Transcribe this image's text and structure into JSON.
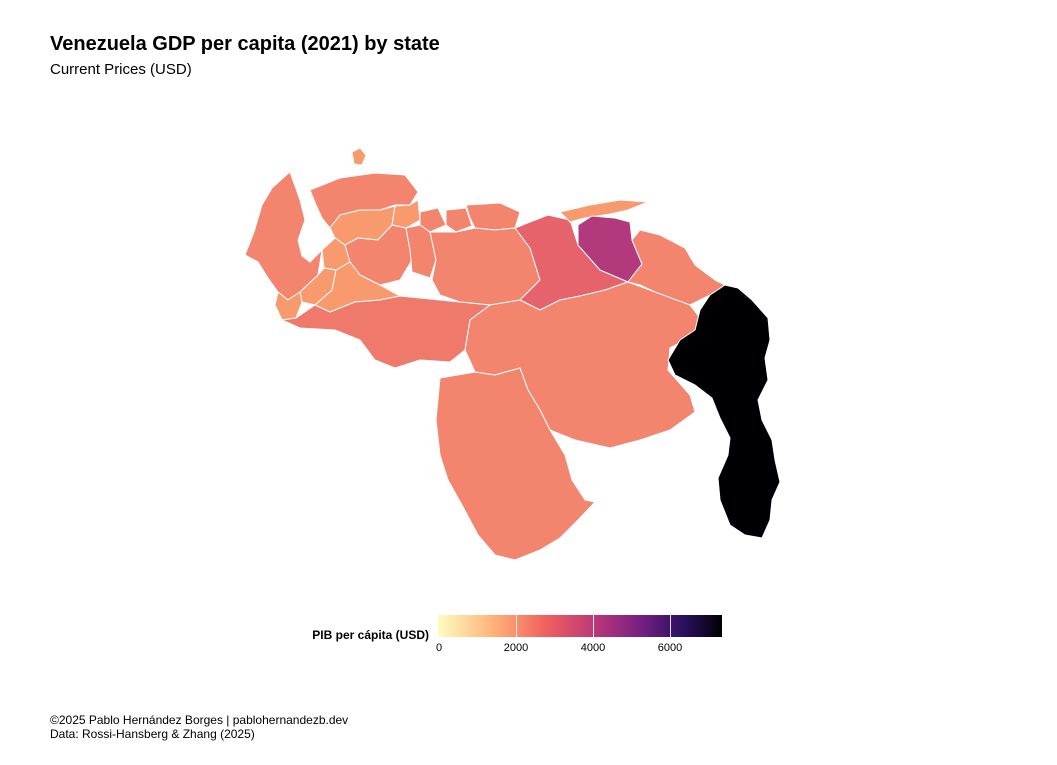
{
  "title": "Venezuela GDP per capita (2021) by state",
  "subtitle": "Current Prices (USD)",
  "legend": {
    "title": "PIB per cápita (USD)",
    "min": 0,
    "max": 7300,
    "ticks": [
      {
        "label": "0",
        "value": 0
      },
      {
        "label": "2000",
        "value": 2000
      },
      {
        "label": "4000",
        "value": 4000
      },
      {
        "label": "6000",
        "value": 6000
      }
    ]
  },
  "caption": {
    "line1": "©2025 Pablo Hernández Borges | pablohernandezb.dev",
    "line2": "Data: Rossi-Hansberg & Zhang (2025)"
  },
  "colors": {
    "light_orange": "#f89a6e",
    "salmon": "#f3856e",
    "coral": "#ef7a6c",
    "rose": "#e6636b",
    "magenta": "#b2397b",
    "black": "#000004",
    "border": "#ffffff"
  }
}
